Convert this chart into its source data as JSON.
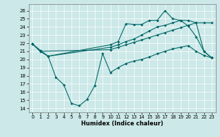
{
  "title": "",
  "xlabel": "Humidex (Indice chaleur)",
  "bg_color": "#cce8e8",
  "line_color": "#006666",
  "grid_color": "#aacccc",
  "xlim": [
    -0.5,
    23.5
  ],
  "ylim": [
    13.5,
    26.8
  ],
  "yticks": [
    14,
    15,
    16,
    17,
    18,
    19,
    20,
    21,
    22,
    23,
    24,
    25,
    26
  ],
  "xticks": [
    0,
    1,
    2,
    3,
    4,
    5,
    6,
    7,
    8,
    9,
    10,
    11,
    12,
    13,
    14,
    15,
    16,
    17,
    18,
    19,
    20,
    21,
    22,
    23
  ],
  "series1_x": [
    0,
    1,
    2,
    10,
    11,
    12,
    13,
    14,
    15,
    16,
    17,
    18,
    19,
    20,
    21,
    22,
    23
  ],
  "series1_y": [
    21.9,
    21.1,
    20.4,
    21.8,
    22.2,
    24.4,
    24.3,
    24.3,
    24.8,
    24.8,
    26.0,
    25.0,
    24.8,
    24.1,
    22.8,
    21.0,
    20.2
  ],
  "series2_x": [
    0,
    1,
    2,
    10,
    11,
    12,
    13,
    14,
    15,
    16,
    17,
    18,
    19,
    20,
    21,
    22,
    23
  ],
  "series2_y": [
    21.9,
    21.1,
    20.4,
    21.5,
    21.8,
    22.2,
    22.5,
    23.0,
    23.5,
    24.0,
    24.2,
    24.5,
    24.8,
    24.8,
    24.5,
    21.0,
    20.2
  ],
  "series3_x": [
    0,
    1,
    2,
    3,
    4,
    5,
    6,
    7,
    8,
    9,
    10,
    11,
    12,
    13,
    14,
    15,
    16,
    17,
    18,
    19,
    20,
    21,
    22,
    23
  ],
  "series3_y": [
    21.9,
    21.0,
    20.4,
    17.8,
    16.9,
    14.6,
    14.3,
    15.1,
    16.8,
    20.7,
    18.4,
    19.0,
    19.5,
    19.8,
    20.0,
    20.3,
    20.7,
    21.0,
    21.3,
    21.5,
    21.7,
    21.0,
    20.5,
    20.2
  ],
  "series4_x": [
    0,
    1,
    10,
    11,
    12,
    13,
    14,
    15,
    16,
    17,
    18,
    19,
    20,
    21,
    22,
    23
  ],
  "series4_y": [
    21.9,
    21.0,
    21.2,
    21.5,
    21.8,
    22.1,
    22.4,
    22.7,
    23.0,
    23.3,
    23.6,
    23.9,
    24.2,
    24.5,
    24.5,
    24.5
  ],
  "marker": "D",
  "markersize": 1.8,
  "linewidth": 0.8,
  "tick_fontsize": 5.0,
  "xlabel_fontsize": 6.0
}
